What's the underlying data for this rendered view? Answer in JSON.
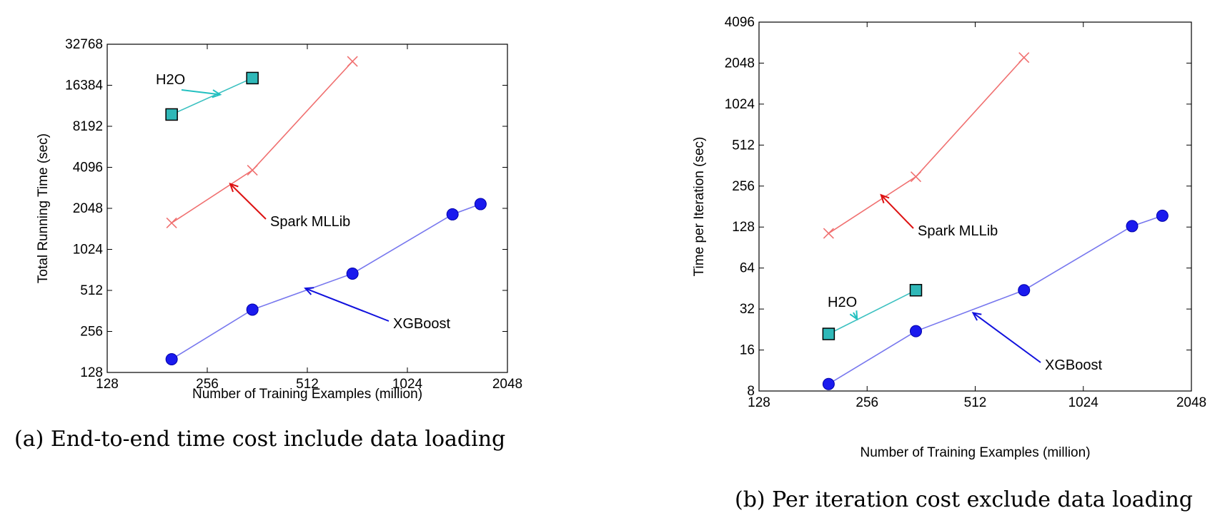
{
  "chart_data": [
    {
      "type": "line",
      "caption": "(a) End-to-end time cost include data loading",
      "xlabel": "Number of Training Examples (million)",
      "ylabel": "Total Running Time (sec)",
      "xscale": "log2",
      "yscale": "log2",
      "xlim": [
        128,
        2048
      ],
      "ylim": [
        128,
        32768
      ],
      "xticks": [
        "128",
        "256",
        "512",
        "1024",
        "2048"
      ],
      "yticks": [
        "128",
        "256",
        "512",
        "1024",
        "2048",
        "4096",
        "8192",
        "16384",
        "32768"
      ],
      "grid": false,
      "series": [
        {
          "name": "H2O",
          "color": "#3cc1c1",
          "marker": "square",
          "x": [
            200,
            350
          ],
          "y": [
            10000,
            18500
          ]
        },
        {
          "name": "Spark MLLib",
          "color": "#f07070",
          "marker": "x",
          "x": [
            200,
            350,
            700
          ],
          "y": [
            1600,
            3900,
            24500
          ]
        },
        {
          "name": "XGBoost",
          "color": "#7777ee",
          "marker": "circle",
          "x": [
            200,
            350,
            700,
            1400,
            1700
          ],
          "y": [
            160,
            370,
            680,
            1850,
            2200
          ]
        }
      ],
      "annotations": [
        {
          "text": "H2O",
          "series": 0,
          "point_x": 280,
          "point_y": 14000
        },
        {
          "text": "Spark MLLib",
          "series": 1,
          "point_x": 300,
          "point_y": 3100
        },
        {
          "text": "XGBoost",
          "series": 2,
          "point_x": 505,
          "point_y": 530
        }
      ]
    },
    {
      "type": "line",
      "caption": "(b) Per iteration cost exclude data loading",
      "xlabel": "Number of Training Examples (million)",
      "ylabel": "Time per Iteration (sec)",
      "xscale": "log2",
      "yscale": "log2",
      "xlim": [
        128,
        2048
      ],
      "ylim": [
        8,
        4096
      ],
      "xticks": [
        "128",
        "256",
        "512",
        "1024",
        "2048"
      ],
      "yticks": [
        "8",
        "16",
        "32",
        "64",
        "128",
        "256",
        "512",
        "1024",
        "2048",
        "4096"
      ],
      "grid": false,
      "series": [
        {
          "name": "H2O",
          "color": "#3cc1c1",
          "marker": "square",
          "x": [
            200,
            350
          ],
          "y": [
            21,
            44
          ]
        },
        {
          "name": "Spark MLLib",
          "color": "#f07070",
          "marker": "x",
          "x": [
            200,
            350,
            700
          ],
          "y": [
            115,
            300,
            2250
          ]
        },
        {
          "name": "XGBoost",
          "color": "#7777ee",
          "marker": "circle",
          "x": [
            200,
            350,
            700,
            1400,
            1700
          ],
          "y": [
            9,
            22,
            44,
            130,
            155
          ]
        }
      ],
      "annotations": [
        {
          "text": "H2O",
          "series": 0,
          "point_x": 240,
          "point_y": 27
        },
        {
          "text": "Spark MLLib",
          "series": 1,
          "point_x": 280,
          "point_y": 220
        },
        {
          "text": "XGBoost",
          "series": 2,
          "point_x": 505,
          "point_y": 30
        }
      ]
    }
  ]
}
